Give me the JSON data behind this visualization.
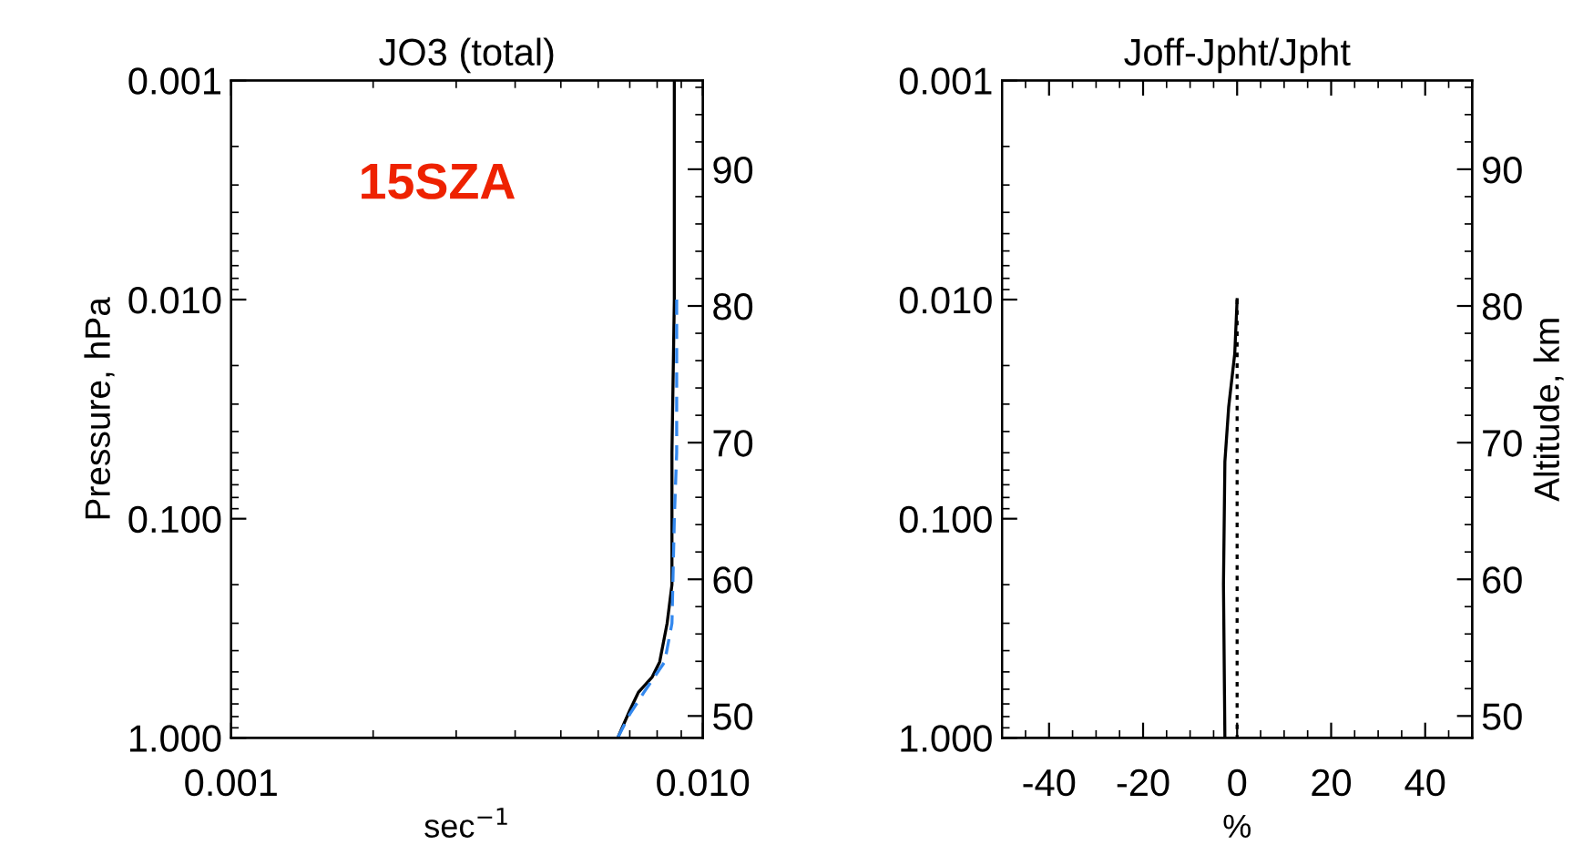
{
  "chart_data": [
    {
      "type": "line",
      "title": "JO3 (total)",
      "xlabel": "sec$^{−1}$",
      "ylabel": "Pressure, hPa",
      "log": "xy",
      "xlim": [
        0.001,
        0.01
      ],
      "ylim": [
        1,
        0.001
      ],
      "xticks": [
        {
          "value": 0.001,
          "label": "0.001"
        },
        {
          "value": 0.01,
          "label": "0.010"
        }
      ],
      "yticks": [
        {
          "value": 0.001,
          "label": "0.001"
        },
        {
          "value": 0.01,
          "label": "0.010"
        },
        {
          "value": 0.1,
          "label": "0.100"
        },
        {
          "value": 1,
          "label": "1.000"
        }
      ],
      "y2lim": [
        48.4,
        96.5
      ],
      "y2ticks": [
        50,
        60,
        70,
        80,
        90
      ],
      "annotations": [
        "15SZA"
      ],
      "grid": false,
      "legend": false,
      "series": [
        {
          "color": "#000000",
          "line_style": "solid",
          "x": [
            0.0087,
            0.0087,
            0.0086,
            0.0086,
            0.0086,
            0.0084,
            0.0081,
            0.0078,
            0.0073,
            0.007,
            0.0066
          ],
          "values": [
            0.001,
            0.01,
            0.05,
            0.1,
            0.2,
            0.3,
            0.45,
            0.53,
            0.62,
            0.75,
            1.0
          ]
        },
        {
          "color": "#3388ee",
          "line_style": "dashed",
          "x": [
            0.0088,
            0.0088,
            0.0087,
            0.0086,
            0.0083,
            0.0075,
            0.007,
            0.0066
          ],
          "values": [
            0.01,
            0.05,
            0.1,
            0.3,
            0.45,
            0.62,
            0.78,
            1.0
          ]
        }
      ]
    },
    {
      "type": "line",
      "title": "Joff-Jpht/Jpht",
      "xlabel": "%",
      "y2label": "Altitude, km",
      "log": "y",
      "xlim": [
        -50,
        50
      ],
      "ylim": [
        1,
        0.001
      ],
      "xticks": [
        -40,
        -20,
        0,
        20,
        40
      ],
      "yticks": [
        {
          "value": 0.001,
          "label": "0.001"
        },
        {
          "value": 0.01,
          "label": "0.010"
        },
        {
          "value": 0.1,
          "label": "0.100"
        },
        {
          "value": 1,
          "label": "1.000"
        }
      ],
      "y2lim": [
        48.4,
        96.5
      ],
      "y2ticks": [
        50,
        60,
        70,
        80,
        90
      ],
      "grid": false,
      "legend": false,
      "series": [
        {
          "color": "#000000",
          "line_style": "solid",
          "x": [
            0,
            -0.5,
            -1.8,
            -2.6,
            -2.9,
            -2.6
          ],
          "values": [
            0.01,
            0.0176,
            0.031,
            0.055,
            0.2,
            1.0
          ]
        },
        {
          "color": "#000000",
          "line_style": "dotted",
          "x": [
            0,
            0
          ],
          "values": [
            0.01,
            1.0
          ]
        }
      ]
    }
  ]
}
